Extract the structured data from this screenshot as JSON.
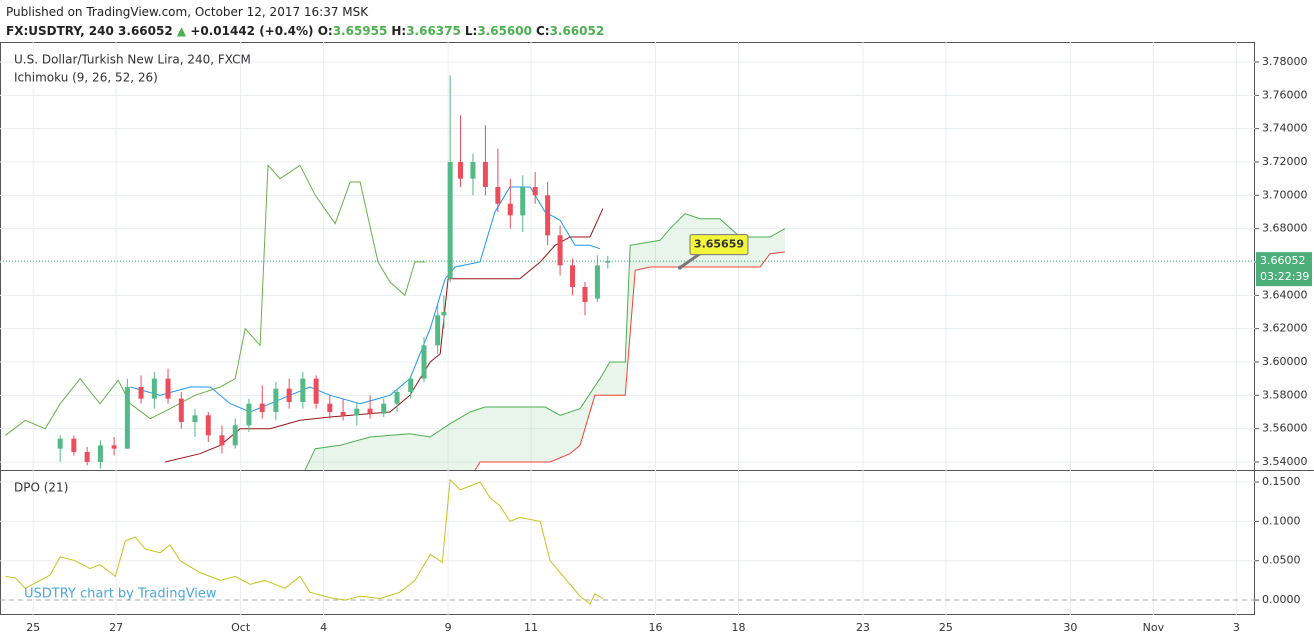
{
  "header": {
    "published": "Published on TradingView.com, October 12, 2017 16:37 MSK",
    "symbol": "FX:USDTRY, 240",
    "price": "3.66052",
    "change": "+0.01442 (+0.4%)",
    "ohlc": [
      {
        "label": "O:",
        "value": "3.65955"
      },
      {
        "label": "H:",
        "value": "3.66375"
      },
      {
        "label": "L:",
        "value": "3.65600"
      },
      {
        "label": "C:",
        "value": "3.66052"
      }
    ]
  },
  "chart_data": [
    {
      "type": "candlestick",
      "title": "U.S. Dollar/Turkish New Lira, 240, FXCM",
      "subtitle": "Ichimoku (9, 26, 52, 26)",
      "watermark": "USDTRY chart by TradingView",
      "up_color": "#53b987",
      "down_color": "#eb4d5c",
      "grid": true,
      "xlim": [
        -0.8,
        29.45
      ],
      "xticks": [
        {
          "value": 0,
          "label": "25"
        },
        {
          "value": 2,
          "label": "27"
        },
        {
          "value": 5,
          "label": "Oct"
        },
        {
          "value": 7,
          "label": "4"
        },
        {
          "value": 10,
          "label": "9"
        },
        {
          "value": 12,
          "label": "11"
        },
        {
          "value": 15,
          "label": "16"
        },
        {
          "value": 17,
          "label": "18"
        },
        {
          "value": 20,
          "label": "23"
        },
        {
          "value": 22,
          "label": "25"
        },
        {
          "value": 25,
          "label": "30"
        },
        {
          "value": 27,
          "label": "Nov"
        },
        {
          "value": 29,
          "label": "3"
        }
      ],
      "ylim": [
        3.5352,
        3.792
      ],
      "yticks": [
        {
          "value": 3.54,
          "label": "3.54000"
        },
        {
          "value": 3.56,
          "label": "3.56000"
        },
        {
          "value": 3.58,
          "label": "3.58000"
        },
        {
          "value": 3.6,
          "label": "3.60000"
        },
        {
          "value": 3.62,
          "label": "3.62000"
        },
        {
          "value": 3.64,
          "label": "3.64000"
        },
        {
          "value": 3.66,
          "label": "3.66000"
        },
        {
          "value": 3.68,
          "label": "3.68000"
        },
        {
          "value": 3.7,
          "label": "3.70000"
        },
        {
          "value": 3.72,
          "label": "3.72000"
        },
        {
          "value": 3.74,
          "label": "3.74000"
        },
        {
          "value": 3.76,
          "label": "3.76000"
        },
        {
          "value": 3.78,
          "label": "3.78000"
        }
      ],
      "last_price": 3.66052,
      "countdown": "03:22:39",
      "last_color": "#4caf7a",
      "callout": {
        "x": 15.59,
        "value": 3.65659
      },
      "x": [
        0.65,
        0.98,
        1.3,
        1.62,
        1.95,
        2.27,
        2.6,
        2.92,
        3.25,
        3.57,
        3.9,
        4.22,
        4.55,
        4.87,
        5.2,
        5.52,
        5.85,
        6.17,
        6.5,
        6.82,
        7.15,
        7.47,
        7.8,
        8.12,
        8.45,
        8.77,
        9.1,
        9.42,
        9.75,
        9.9,
        10.05,
        10.3,
        10.6,
        10.9,
        11.2,
        11.5,
        11.8,
        12.1,
        12.4,
        12.7,
        13.0,
        13.3,
        13.6,
        13.85
      ],
      "open": [
        3.548,
        3.554,
        3.546,
        3.54,
        3.55,
        3.548,
        3.585,
        3.578,
        3.59,
        3.578,
        3.564,
        3.568,
        3.556,
        3.55,
        3.562,
        3.575,
        3.57,
        3.584,
        3.576,
        3.59,
        3.575,
        3.57,
        3.568,
        3.572,
        3.569,
        3.575,
        3.582,
        3.59,
        3.61,
        3.628,
        3.65,
        3.72,
        3.71,
        3.72,
        3.705,
        3.695,
        3.688,
        3.705,
        3.7,
        3.676,
        3.658,
        3.645,
        3.638,
        3.65955
      ],
      "high": [
        3.556,
        3.556,
        3.549,
        3.553,
        3.555,
        3.59,
        3.592,
        3.594,
        3.596,
        3.582,
        3.572,
        3.57,
        3.562,
        3.566,
        3.578,
        3.586,
        3.588,
        3.59,
        3.594,
        3.592,
        3.58,
        3.578,
        3.576,
        3.58,
        3.578,
        3.584,
        3.592,
        3.615,
        3.635,
        3.64,
        3.772,
        3.748,
        3.725,
        3.742,
        3.728,
        3.71,
        3.712,
        3.714,
        3.708,
        3.682,
        3.662,
        3.648,
        3.664,
        3.66375
      ],
      "low": [
        3.54,
        3.544,
        3.538,
        3.536,
        3.544,
        3.548,
        3.575,
        3.572,
        3.575,
        3.56,
        3.555,
        3.552,
        3.545,
        3.548,
        3.558,
        3.566,
        3.565,
        3.572,
        3.572,
        3.572,
        3.566,
        3.565,
        3.562,
        3.566,
        3.567,
        3.57,
        3.578,
        3.588,
        3.605,
        3.62,
        3.648,
        3.705,
        3.7,
        3.7,
        3.69,
        3.68,
        3.678,
        3.695,
        3.67,
        3.652,
        3.64,
        3.628,
        3.636,
        3.656
      ],
      "close": [
        3.554,
        3.546,
        3.54,
        3.55,
        3.548,
        3.585,
        3.578,
        3.59,
        3.578,
        3.564,
        3.568,
        3.556,
        3.55,
        3.562,
        3.575,
        3.57,
        3.584,
        3.576,
        3.59,
        3.575,
        3.57,
        3.568,
        3.572,
        3.569,
        3.575,
        3.582,
        3.59,
        3.61,
        3.628,
        3.63,
        3.72,
        3.71,
        3.72,
        3.705,
        3.695,
        3.688,
        3.705,
        3.7,
        3.676,
        3.658,
        3.645,
        3.636,
        3.658,
        3.66052
      ],
      "cloud_color": "rgba(76,175,80,0.12)",
      "series": [
        {
          "name": "Lagging Span",
          "color": "#6ab04c",
          "x": [
            -0.67,
            -0.19,
            0.29,
            0.65,
            1.13,
            1.61,
            2.05,
            2.34,
            2.82,
            3.3,
            3.9,
            4.51,
            4.87,
            5.11,
            5.47,
            5.66,
            5.95,
            6.43,
            6.8,
            7.28,
            7.64,
            7.88,
            8.31,
            8.6,
            8.96,
            9.2,
            9.45
          ],
          "values": [
            3.556,
            3.565,
            3.56,
            3.575,
            3.59,
            3.575,
            3.589,
            3.575,
            3.566,
            3.572,
            3.58,
            3.585,
            3.59,
            3.62,
            3.61,
            3.718,
            3.71,
            3.718,
            3.7,
            3.683,
            3.708,
            3.708,
            3.66,
            3.648,
            3.64,
            3.66,
            3.66
          ]
        },
        {
          "name": "Conversion Line",
          "color": "#2196f3",
          "x": [
            2.34,
            3.06,
            3.78,
            4.27,
            4.75,
            5.23,
            5.71,
            6.19,
            6.67,
            7.16,
            7.88,
            8.6,
            9.08,
            9.57,
            9.93,
            10.17,
            10.77,
            11.13,
            11.49,
            11.98,
            12.34,
            12.7,
            13.06,
            13.42,
            13.66
          ],
          "values": [
            3.585,
            3.58,
            3.585,
            3.585,
            3.575,
            3.57,
            3.575,
            3.58,
            3.585,
            3.58,
            3.575,
            3.58,
            3.59,
            3.62,
            3.65,
            3.657,
            3.66,
            3.69,
            3.705,
            3.705,
            3.69,
            3.685,
            3.67,
            3.67,
            3.668
          ]
        },
        {
          "name": "Base Line",
          "color": "#991515",
          "x": [
            3.18,
            4.02,
            4.51,
            4.99,
            5.71,
            6.43,
            7.16,
            8.6,
            9.08,
            9.57,
            9.81,
            10.0,
            11.25,
            11.73,
            12.22,
            12.58,
            12.94,
            13.42,
            13.73
          ],
          "values": [
            3.54,
            3.545,
            3.55,
            3.56,
            3.56,
            3.565,
            3.567,
            3.57,
            3.58,
            3.6,
            3.605,
            3.65,
            3.65,
            3.65,
            3.66,
            3.67,
            3.675,
            3.675,
            3.692
          ]
        },
        {
          "name": "Lead 1",
          "color": "#4caf50",
          "x": [
            6.55,
            6.8,
            7.4,
            8.12,
            9.08,
            9.57,
            10.05,
            10.53,
            10.89,
            12.34,
            12.7,
            13.18,
            13.66,
            13.9,
            14.27,
            14.39,
            15.11,
            15.35,
            15.71,
            16.07,
            16.55,
            17.04,
            17.76,
            18.12
          ],
          "values": [
            3.535,
            3.548,
            3.55,
            3.555,
            3.557,
            3.555,
            3.563,
            3.57,
            3.573,
            3.573,
            3.568,
            3.572,
            3.59,
            3.6,
            3.6,
            3.67,
            3.673,
            3.68,
            3.689,
            3.686,
            3.686,
            3.675,
            3.675,
            3.68
          ]
        },
        {
          "name": "Lead 2",
          "color": "#f44336",
          "x": [
            6.55,
            10.53,
            10.77,
            12.46,
            12.94,
            13.18,
            13.54,
            14.27,
            14.51,
            14.87,
            17.52,
            17.76,
            18.12
          ],
          "values": [
            3.53,
            3.53,
            3.54,
            3.54,
            3.545,
            3.55,
            3.58,
            3.58,
            3.655,
            3.657,
            3.657,
            3.665,
            3.666
          ]
        }
      ]
    },
    {
      "type": "line",
      "title": "DPO (21)",
      "color": "#c9c21f",
      "ylim": [
        -0.019,
        0.1653
      ],
      "yticks": [
        {
          "value": 0,
          "label": "0.0000"
        },
        {
          "value": 0.05,
          "label": "0.0500"
        },
        {
          "value": 0.1,
          "label": "0.1000"
        },
        {
          "value": 0.15,
          "label": "0.1500"
        }
      ],
      "x": [
        -0.67,
        -0.43,
        -0.19,
        0.17,
        0.41,
        0.65,
        1.01,
        1.37,
        1.61,
        1.98,
        2.22,
        2.46,
        2.7,
        3.06,
        3.3,
        3.54,
        4.02,
        4.51,
        4.87,
        5.23,
        5.59,
        6.07,
        6.43,
        6.67,
        7.16,
        7.52,
        7.88,
        8.36,
        8.84,
        9.2,
        9.57,
        9.86,
        10.05,
        10.29,
        10.53,
        10.77,
        11.01,
        11.25,
        11.49,
        11.73,
        12.22,
        12.46,
        12.7,
        12.94,
        13.18,
        13.42,
        13.54,
        13.73
      ],
      "values": [
        0.03,
        0.028,
        0.015,
        0.025,
        0.032,
        0.055,
        0.05,
        0.04,
        0.045,
        0.03,
        0.075,
        0.08,
        0.065,
        0.06,
        0.07,
        0.05,
        0.035,
        0.025,
        0.03,
        0.02,
        0.025,
        0.015,
        0.03,
        0.01,
        0.003,
        0.0,
        0.005,
        0.002,
        0.01,
        0.025,
        0.058,
        0.048,
        0.153,
        0.14,
        0.145,
        0.15,
        0.13,
        0.12,
        0.1,
        0.105,
        0.1,
        0.05,
        0.035,
        0.02,
        0.005,
        -0.005,
        0.008,
        0.002
      ]
    }
  ]
}
